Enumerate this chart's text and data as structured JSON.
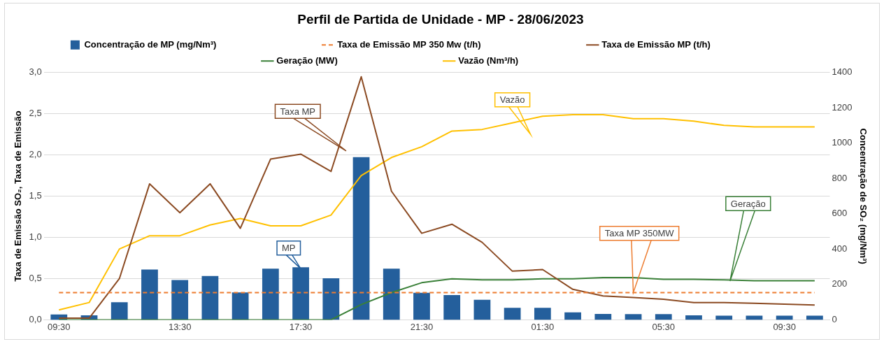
{
  "chart_data": {
    "type": "bar",
    "title": "Perfil de Partida de Unidade - MP - 28/06/2023",
    "ylabel": "Taxa de Emissão SO₂, Taxa de Emissão",
    "y2label": "Concentração de SO₂ (mg/Nm³)",
    "categories": [
      "09:30",
      null,
      null,
      null,
      "13:30",
      null,
      null,
      null,
      "17:30",
      null,
      null,
      null,
      "21:30",
      null,
      null,
      null,
      "01:30",
      null,
      null,
      null,
      "05:30",
      null,
      null,
      null,
      "09:30",
      null
    ],
    "series": [
      {
        "name": "Concentração de MP (mg/Nm³)",
        "axis": "y2",
        "color": "#245f9c",
        "values": [
          30,
          25,
          100,
          285,
          225,
          248,
          155,
          290,
          298,
          235,
          921,
          290,
          153,
          140,
          113,
          68,
          68,
          42,
          33,
          32,
          32,
          25,
          23,
          23,
          23,
          23
        ]
      },
      {
        "name": "Taxa de Emissão MP 350 Mw (t/h)",
        "type": "line",
        "line_style": "dashed",
        "color": "#ed7d31",
        "values": [
          0.33,
          0.33,
          0.33,
          0.33,
          0.33,
          0.33,
          0.33,
          0.33,
          0.33,
          0.33,
          0.33,
          0.33,
          0.33,
          0.33,
          0.33,
          0.33,
          0.33,
          0.33,
          0.33,
          0.33,
          0.33,
          0.33,
          0.33,
          0.33,
          0.33,
          0.33
        ]
      },
      {
        "name": "Taxa de Emissão MP (t/h)",
        "type": "line",
        "line_style": "solid",
        "color": "#8b4a22",
        "values": [
          0.02,
          0.02,
          0.5,
          1.65,
          1.3,
          1.65,
          1.11,
          1.95,
          2.01,
          1.8,
          2.95,
          1.56,
          1.05,
          1.16,
          0.94,
          0.59,
          0.61,
          0.37,
          0.29,
          0.27,
          0.25,
          0.21,
          0.21,
          0.2,
          0.19,
          0.18
        ]
      },
      {
        "name": "Geração (MW)",
        "type": "line",
        "line_style": "solid",
        "axis": "y2",
        "color": "#3a8038",
        "values": [
          0,
          0,
          0,
          0,
          0,
          0,
          0,
          0,
          0,
          0,
          86,
          154,
          210,
          232,
          226,
          226,
          232,
          232,
          239,
          239,
          229,
          229,
          226,
          221,
          221,
          221
        ]
      },
      {
        "name": "Vazão (Nm³/h)",
        "type": "line",
        "line_style": "solid",
        "axis": "y2",
        "color": "#ffc000",
        "values": [
          56,
          98,
          401,
          476,
          476,
          537,
          574,
          532,
          532,
          593,
          817,
          919,
          980,
          1069,
          1078,
          1115,
          1153,
          1162,
          1162,
          1139,
          1139,
          1125,
          1101,
          1092,
          1092,
          1092
        ]
      }
    ],
    "ylim": [
      0,
      3
    ],
    "yticks": [
      {
        "value": 0,
        "label": "0,0"
      },
      {
        "value": 0.5,
        "label": "0,5"
      },
      {
        "value": 1,
        "label": "1,0"
      },
      {
        "value": 1.5,
        "label": "1,5"
      },
      {
        "value": 2,
        "label": "2,0"
      },
      {
        "value": 2.5,
        "label": "2,5"
      },
      {
        "value": 3,
        "label": "3,0"
      }
    ],
    "y2lim": [
      0,
      1400
    ],
    "y2ticks": [
      0,
      200,
      400,
      600,
      800,
      1000,
      1200,
      1400
    ],
    "grid": "y",
    "legend": "top",
    "marker": "none",
    "annotations": [
      "Taxa MP",
      "Vazão",
      "MP",
      "Taxa MP 350MW",
      "Geração"
    ]
  }
}
